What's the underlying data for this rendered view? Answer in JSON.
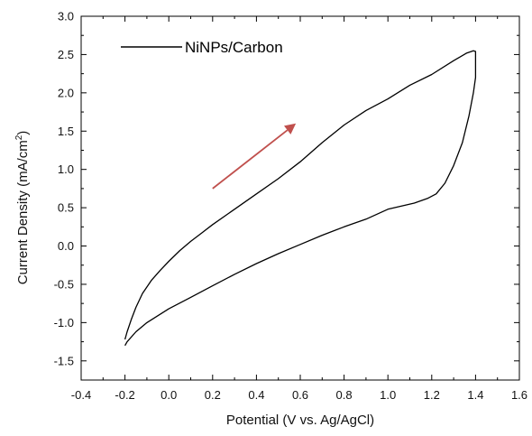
{
  "chart_data": {
    "type": "line",
    "title": "",
    "xlabel": "Potential (V vs. Ag/AgCl)",
    "ylabel": "Current Density (mA/cm²)",
    "ylabel_main": "Current Density (mA/cm",
    "ylabel_sup": "2",
    "ylabel_close": ")",
    "xlim": [
      -0.4,
      1.6
    ],
    "ylim": [
      -1.75,
      3.0
    ],
    "x_ticks": [
      -0.4,
      -0.2,
      0.0,
      0.2,
      0.4,
      0.6,
      0.8,
      1.0,
      1.2,
      1.4,
      1.6
    ],
    "x_tick_labels": [
      "-0.4",
      "-0.2",
      "0.0",
      "0.2",
      "0.4",
      "0.6",
      "0.8",
      "1.0",
      "1.2",
      "1.4",
      "1.6"
    ],
    "y_ticks": [
      -1.5,
      -1.0,
      -0.5,
      0.0,
      0.5,
      1.0,
      1.5,
      2.0,
      2.5,
      3.0
    ],
    "y_tick_labels": [
      "-1.5",
      "-1.0",
      "-0.5",
      "0.0",
      "0.5",
      "1.0",
      "1.5",
      "2.0",
      "2.5",
      "3.0"
    ],
    "grid": false,
    "legend_position": "top-left",
    "series": [
      {
        "name": "NiNPs/Carbon",
        "color": "#000000",
        "x": [
          -0.2,
          -0.19,
          -0.17,
          -0.15,
          -0.12,
          -0.08,
          -0.04,
          0.0,
          0.05,
          0.1,
          0.15,
          0.2,
          0.3,
          0.4,
          0.5,
          0.6,
          0.7,
          0.8,
          0.9,
          1.0,
          1.1,
          1.2,
          1.3,
          1.36,
          1.39,
          1.4,
          1.4,
          1.39,
          1.37,
          1.34,
          1.3,
          1.26,
          1.22,
          1.18,
          1.12,
          1.06,
          1.0,
          0.9,
          0.8,
          0.7,
          0.6,
          0.5,
          0.4,
          0.3,
          0.2,
          0.1,
          0.0,
          -0.1,
          -0.15,
          -0.19,
          -0.2
        ],
        "y": [
          -1.22,
          -1.12,
          -0.95,
          -0.8,
          -0.62,
          -0.45,
          -0.32,
          -0.2,
          -0.06,
          0.06,
          0.17,
          0.28,
          0.48,
          0.68,
          0.88,
          1.1,
          1.35,
          1.58,
          1.77,
          1.92,
          2.1,
          2.24,
          2.42,
          2.52,
          2.55,
          2.54,
          2.2,
          2.0,
          1.7,
          1.35,
          1.05,
          0.82,
          0.68,
          0.62,
          0.56,
          0.52,
          0.48,
          0.35,
          0.25,
          0.14,
          0.02,
          -0.1,
          -0.23,
          -0.37,
          -0.52,
          -0.67,
          -0.82,
          -1.0,
          -1.12,
          -1.25,
          -1.3
        ]
      }
    ],
    "annotations": [
      {
        "type": "arrow",
        "color": "#c0504d",
        "from": [
          0.2,
          0.75
        ],
        "to": [
          0.58,
          1.6
        ]
      }
    ]
  }
}
